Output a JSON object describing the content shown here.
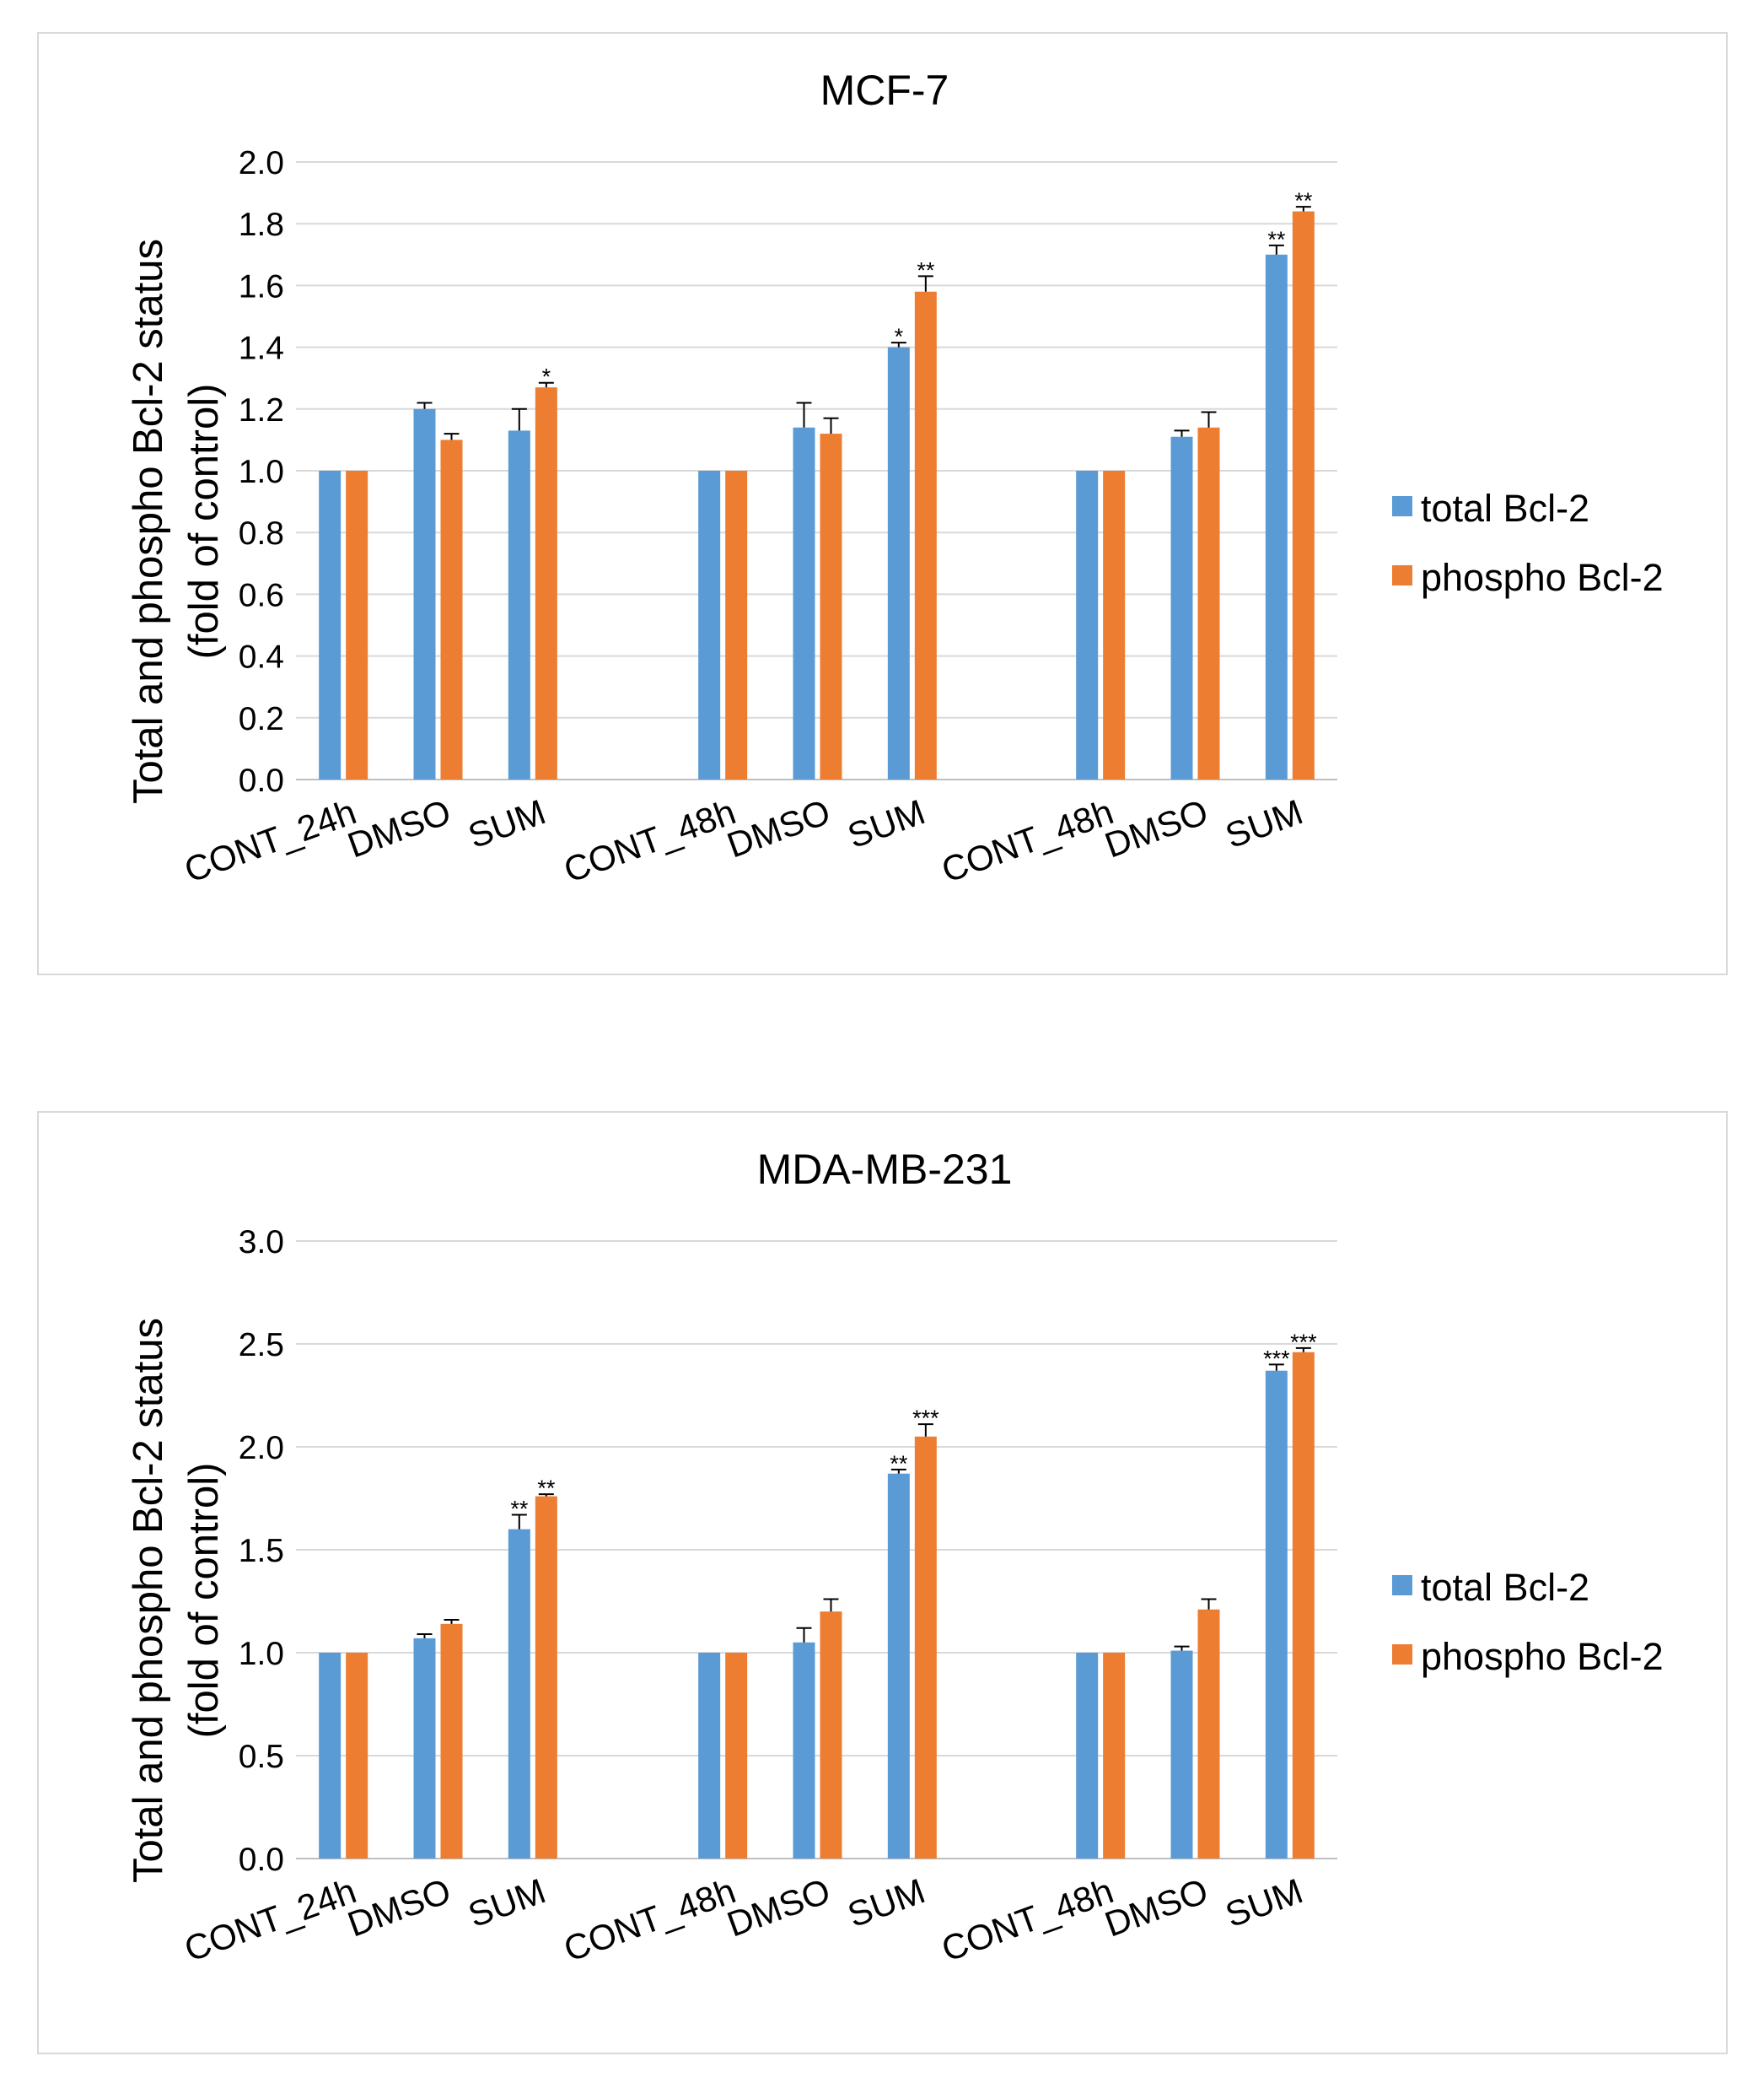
{
  "colors": {
    "total": "#5b9bd5",
    "phospho": "#ed7d31",
    "grid": "#d9d9d9",
    "axis": "#bfbfbf",
    "error": "#000000"
  },
  "chart_data": [
    {
      "type": "bar",
      "title": "MCF-7",
      "ylabel_line1": "Total and phospho Bcl-2 status",
      "ylabel_line2": "(fold of control)",
      "ylim": [
        0,
        2.0
      ],
      "yticks": [
        "0.0",
        "0.2",
        "0.4",
        "0.6",
        "0.8",
        "1.0",
        "1.2",
        "1.4",
        "1.6",
        "1.8",
        "2.0"
      ],
      "categories": [
        "CONT_24h",
        "DMSO",
        "SUM",
        "CONT_48h",
        "DMSO",
        "SUM",
        "CONT_48h",
        "DMSO",
        "SUM"
      ],
      "legend_position": "right",
      "series": [
        {
          "name": "total Bcl-2",
          "values": [
            1.0,
            1.2,
            1.13,
            1.0,
            1.14,
            1.4,
            1.0,
            1.11,
            1.7
          ],
          "errors": [
            0,
            0.02,
            0.07,
            0,
            0.08,
            0.015,
            0,
            0.02,
            0.03
          ],
          "significance": [
            "",
            "",
            "",
            "",
            "",
            "*",
            "",
            "",
            "**"
          ]
        },
        {
          "name": "phospho Bcl-2",
          "values": [
            1.0,
            1.1,
            1.27,
            1.0,
            1.12,
            1.58,
            1.0,
            1.14,
            1.84
          ],
          "errors": [
            0,
            0.02,
            0.015,
            0,
            0.05,
            0.05,
            0,
            0.05,
            0.015
          ],
          "significance": [
            "",
            "",
            "*",
            "",
            "",
            "**",
            "",
            "",
            "**"
          ]
        }
      ]
    },
    {
      "type": "bar",
      "title": "MDA-MB-231",
      "ylabel_line1": "Total and phospho Bcl-2 status",
      "ylabel_line2": "(fold of control)",
      "ylim": [
        0,
        3.0
      ],
      "yticks": [
        "0.0",
        "0.5",
        "1.0",
        "1.5",
        "2.0",
        "2.5",
        "3.0"
      ],
      "categories": [
        "CONT_24h",
        "DMSO",
        "SUM",
        "CONT_48h",
        "DMSO",
        "SUM",
        "CONT_48h",
        "DMSO",
        "SUM"
      ],
      "legend_position": "right",
      "series": [
        {
          "name": "total Bcl-2",
          "values": [
            1.0,
            1.07,
            1.6,
            1.0,
            1.05,
            1.87,
            1.0,
            1.01,
            2.37
          ],
          "errors": [
            0,
            0.02,
            0.07,
            0,
            0.07,
            0.02,
            0,
            0.02,
            0.03
          ],
          "significance": [
            "",
            "",
            "**",
            "",
            "",
            "**",
            "",
            "",
            "***"
          ]
        },
        {
          "name": "phospho Bcl-2",
          "values": [
            1.0,
            1.14,
            1.76,
            1.0,
            1.2,
            2.05,
            1.0,
            1.21,
            2.46
          ],
          "errors": [
            0,
            0.02,
            0.01,
            0,
            0.06,
            0.06,
            0,
            0.05,
            0.02
          ],
          "significance": [
            "",
            "",
            "**",
            "",
            "",
            "***",
            "",
            "",
            "***"
          ]
        }
      ]
    }
  ]
}
